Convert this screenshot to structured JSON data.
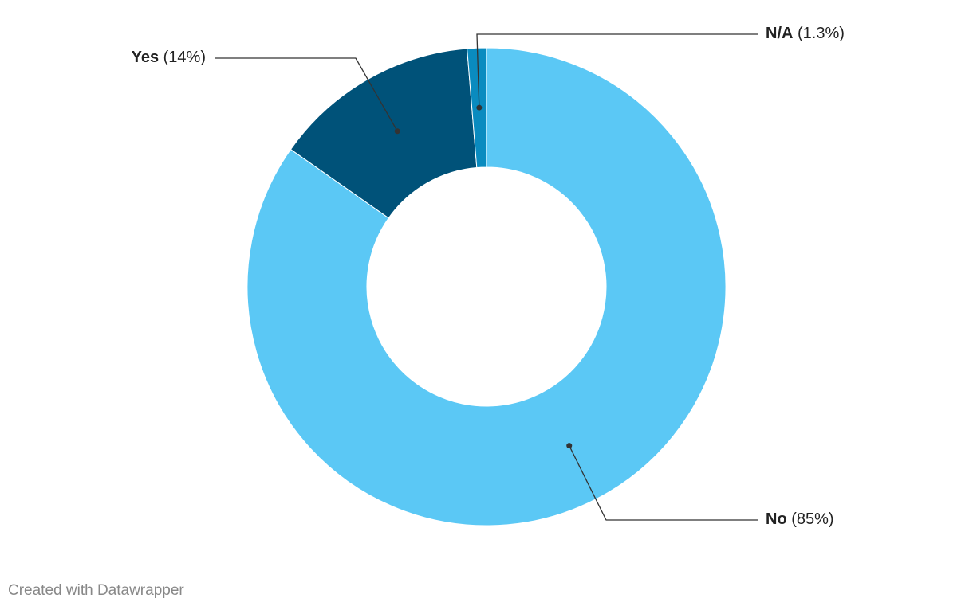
{
  "chart_data": {
    "type": "donut",
    "categories": [
      "No",
      "Yes",
      "N/A"
    ],
    "values": [
      85,
      14,
      1.3
    ],
    "value_labels": [
      "(85%)",
      "(14%)",
      "(1.3%)"
    ],
    "colors": [
      "#5bc8f5",
      "#005279",
      "#0a8bbf"
    ],
    "credit": "Created with Datawrapper"
  }
}
